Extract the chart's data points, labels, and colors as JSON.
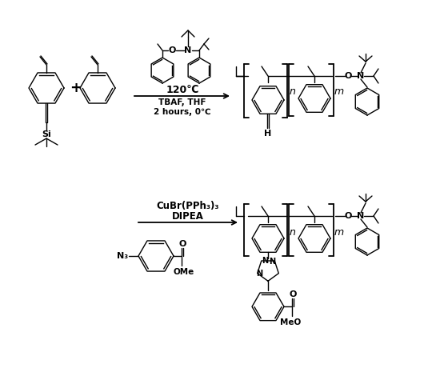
{
  "bg_color": "#ffffff",
  "line_color": "#000000",
  "text_color": "#000000",
  "reaction1_line1": "120℃",
  "reaction1_line2": "TBAF, THF",
  "reaction1_line3": "2 hours, 0℃",
  "reaction2_line1": "CuBr(PPh₃)₃",
  "reaction2_line2": "DIPEA",
  "label_H": "H",
  "label_Si": "Si",
  "label_Az": "N₃",
  "label_OMe": "OMe",
  "label_MeO": "MeO",
  "label_O": "O",
  "label_N": "N"
}
